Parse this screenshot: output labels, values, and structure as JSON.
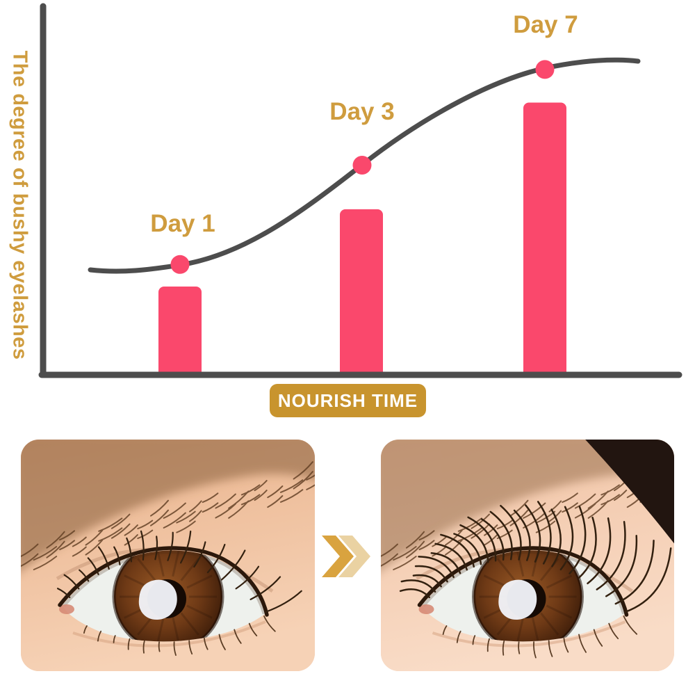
{
  "colors": {
    "gold_text": "#CF9C3E",
    "badge_gold": "#C8942E",
    "pink": "#FA486C",
    "axis_gray": "#4D4D4D",
    "chevron_dark": "#D9A33F",
    "chevron_light": "#EAD2A2"
  },
  "chart_data": {
    "type": "bar",
    "categories": [
      "Day 1",
      "Day 3",
      "Day 7"
    ],
    "series": [
      {
        "name": "Eyelash bushiness bars (% of axis height)",
        "values": [
          24,
          45,
          74
        ]
      },
      {
        "name": "Growth curve markers (% of axis height)",
        "values": [
          30,
          57,
          83
        ]
      }
    ],
    "title": "",
    "xlabel": "NOURISH TIME",
    "ylabel": "The degree of bushy eyelashes",
    "ylim": [
      0,
      100
    ],
    "grid": false,
    "legend": false,
    "annotation": "S-shaped dark gray growth curve with pink round markers at Day 1, Day 3 and Day 7; pink bars of increasing height below each marker"
  },
  "before_after": {
    "arrow_icon": "double-chevron-right",
    "before_alt": "Eye close-up before: sparse short eyelashes",
    "after_alt": "Eye close-up after: dense long curled eyelashes"
  }
}
